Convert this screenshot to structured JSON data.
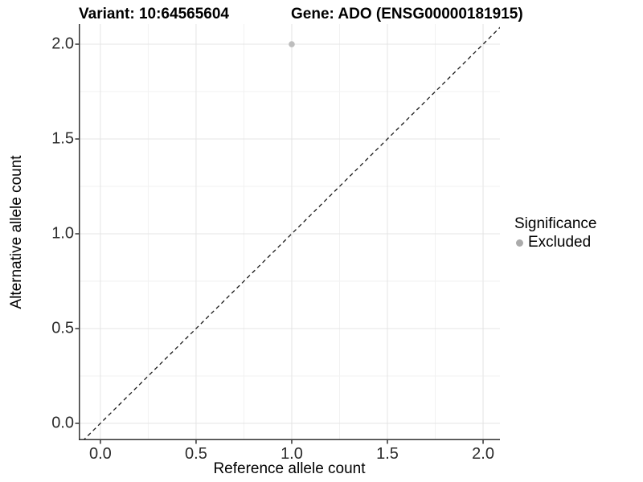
{
  "chart_data": {
    "type": "scatter",
    "title_variant": "Variant: 10:64565604",
    "title_gene": "Gene: ADO (ENSG00000181915)",
    "xlabel": "Reference allele count",
    "ylabel": "Alternative allele count",
    "x_ticks": [
      0.0,
      0.5,
      1.0,
      1.5,
      2.0
    ],
    "y_ticks": [
      0.0,
      0.5,
      1.0,
      1.5,
      2.0
    ],
    "x_tick_labels": [
      "0.0",
      "0.5",
      "1.0",
      "1.5",
      "2.0"
    ],
    "y_tick_labels": [
      "0.0",
      "0.5",
      "1.0",
      "1.5",
      "2.0"
    ],
    "x_minor_ticks": [
      0.25,
      0.75,
      1.25,
      1.75
    ],
    "y_minor_ticks": [
      0.25,
      0.75,
      1.25,
      1.75
    ],
    "xlim": [
      -0.113,
      2.088
    ],
    "ylim": [
      -0.089,
      2.106
    ],
    "grid": true,
    "identity_line": {
      "style": "dashed",
      "slope": 1,
      "intercept": 0,
      "from": -0.2,
      "to": 2.3
    },
    "points": [
      {
        "x": 1.0,
        "y": 2.0,
        "significance": "Excluded"
      }
    ],
    "legend": {
      "title": "Significance",
      "position": "right",
      "items": [
        {
          "label": "Excluded",
          "color": "#ababab"
        }
      ]
    },
    "colors": {
      "point": "#bdbdbd",
      "grid_major": "#e4e4e4",
      "grid_minor": "#f2f2f2",
      "axis_line": "#333333",
      "dashed_line": "#1a1a1a",
      "tick_text": "#2b2b2b"
    }
  }
}
